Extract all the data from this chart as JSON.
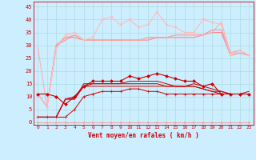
{
  "title": "",
  "xlabel": "Vent moyen/en rafales ( km/h )",
  "background_color": "#cceeff",
  "grid_color": "#aadddd",
  "x": [
    0,
    1,
    2,
    3,
    4,
    5,
    6,
    7,
    8,
    9,
    10,
    11,
    12,
    13,
    14,
    15,
    16,
    17,
    18,
    19,
    20,
    21,
    22,
    23
  ],
  "ylim": [
    -1,
    47
  ],
  "xlim": [
    -0.5,
    23.5
  ],
  "yticks": [
    0,
    5,
    10,
    15,
    20,
    25,
    30,
    35,
    40,
    45
  ],
  "series": [
    {
      "y": [
        11,
        11,
        10,
        7,
        10,
        14,
        16,
        16,
        16,
        16,
        18,
        17,
        18,
        19,
        18,
        17,
        16,
        16,
        14,
        15,
        11,
        11,
        11,
        11
      ],
      "color": "#cc0000",
      "lw": 0.8,
      "marker": "D",
      "ms": 2.0,
      "zorder": 5
    },
    {
      "y": [
        2,
        2,
        2,
        9,
        9,
        15,
        15,
        15,
        15,
        15,
        16,
        16,
        16,
        16,
        15,
        14,
        14,
        15,
        14,
        13,
        12,
        11,
        11,
        12
      ],
      "color": "#cc0000",
      "lw": 0.7,
      "marker": null,
      "ms": 0,
      "zorder": 4
    },
    {
      "y": [
        2,
        2,
        2,
        9,
        9,
        14,
        15,
        15,
        15,
        15,
        15,
        15,
        15,
        15,
        14,
        14,
        14,
        14,
        13,
        12,
        11,
        11,
        11,
        11
      ],
      "color": "#cc0000",
      "lw": 0.7,
      "marker": null,
      "ms": 0,
      "zorder": 4
    },
    {
      "y": [
        2,
        2,
        2,
        9,
        10,
        14,
        14,
        14,
        14,
        14,
        14,
        14,
        14,
        14,
        14,
        14,
        14,
        14,
        13,
        12,
        12,
        11,
        11,
        11
      ],
      "color": "#cc0000",
      "lw": 0.7,
      "marker": null,
      "ms": 0,
      "zorder": 4
    },
    {
      "y": [
        2,
        2,
        2,
        2,
        5,
        10,
        11,
        12,
        12,
        12,
        13,
        13,
        12,
        12,
        11,
        11,
        11,
        11,
        11,
        11,
        11,
        11,
        11,
        11
      ],
      "color": "#cc0000",
      "lw": 0.7,
      "marker": "+",
      "ms": 2.5,
      "zorder": 3
    },
    {
      "y": [
        11,
        6,
        30,
        33,
        33,
        32,
        32,
        32,
        32,
        32,
        32,
        32,
        32,
        33,
        33,
        33,
        33,
        33,
        34,
        35,
        35,
        26,
        27,
        26
      ],
      "color": "#ff8888",
      "lw": 0.8,
      "marker": null,
      "ms": 0,
      "zorder": 2
    },
    {
      "y": [
        11,
        6,
        30,
        32,
        34,
        32,
        32,
        32,
        32,
        32,
        32,
        32,
        33,
        33,
        33,
        34,
        34,
        34,
        34,
        36,
        36,
        27,
        28,
        26
      ],
      "color": "#ff8888",
      "lw": 0.7,
      "marker": null,
      "ms": 0,
      "zorder": 2
    },
    {
      "y": [
        29,
        6,
        29,
        33,
        34,
        32,
        32,
        32,
        32,
        32,
        32,
        32,
        33,
        33,
        33,
        34,
        34,
        34,
        34,
        35,
        39,
        27,
        28,
        26
      ],
      "color": "#ffaaaa",
      "lw": 0.7,
      "marker": null,
      "ms": 0,
      "zorder": 2
    },
    {
      "y": [
        11,
        6,
        29,
        34,
        35,
        32,
        33,
        40,
        41,
        38,
        40,
        37,
        38,
        43,
        38,
        37,
        35,
        35,
        40,
        39,
        38,
        26,
        28,
        26
      ],
      "color": "#ffbbbb",
      "lw": 0.8,
      "marker": "v",
      "ms": 2.0,
      "zorder": 3
    },
    {
      "y": [
        0,
        0,
        0,
        0,
        0,
        0,
        0,
        0,
        0,
        0,
        0,
        0,
        0,
        0,
        0,
        0,
        0,
        0,
        0,
        0,
        0,
        0,
        0,
        0
      ],
      "color": "#ff8888",
      "lw": 0.5,
      "marker": "4",
      "ms": 3,
      "zorder": 6
    }
  ],
  "tick_fontsize": 4.5,
  "xlabel_fontsize": 5.5
}
